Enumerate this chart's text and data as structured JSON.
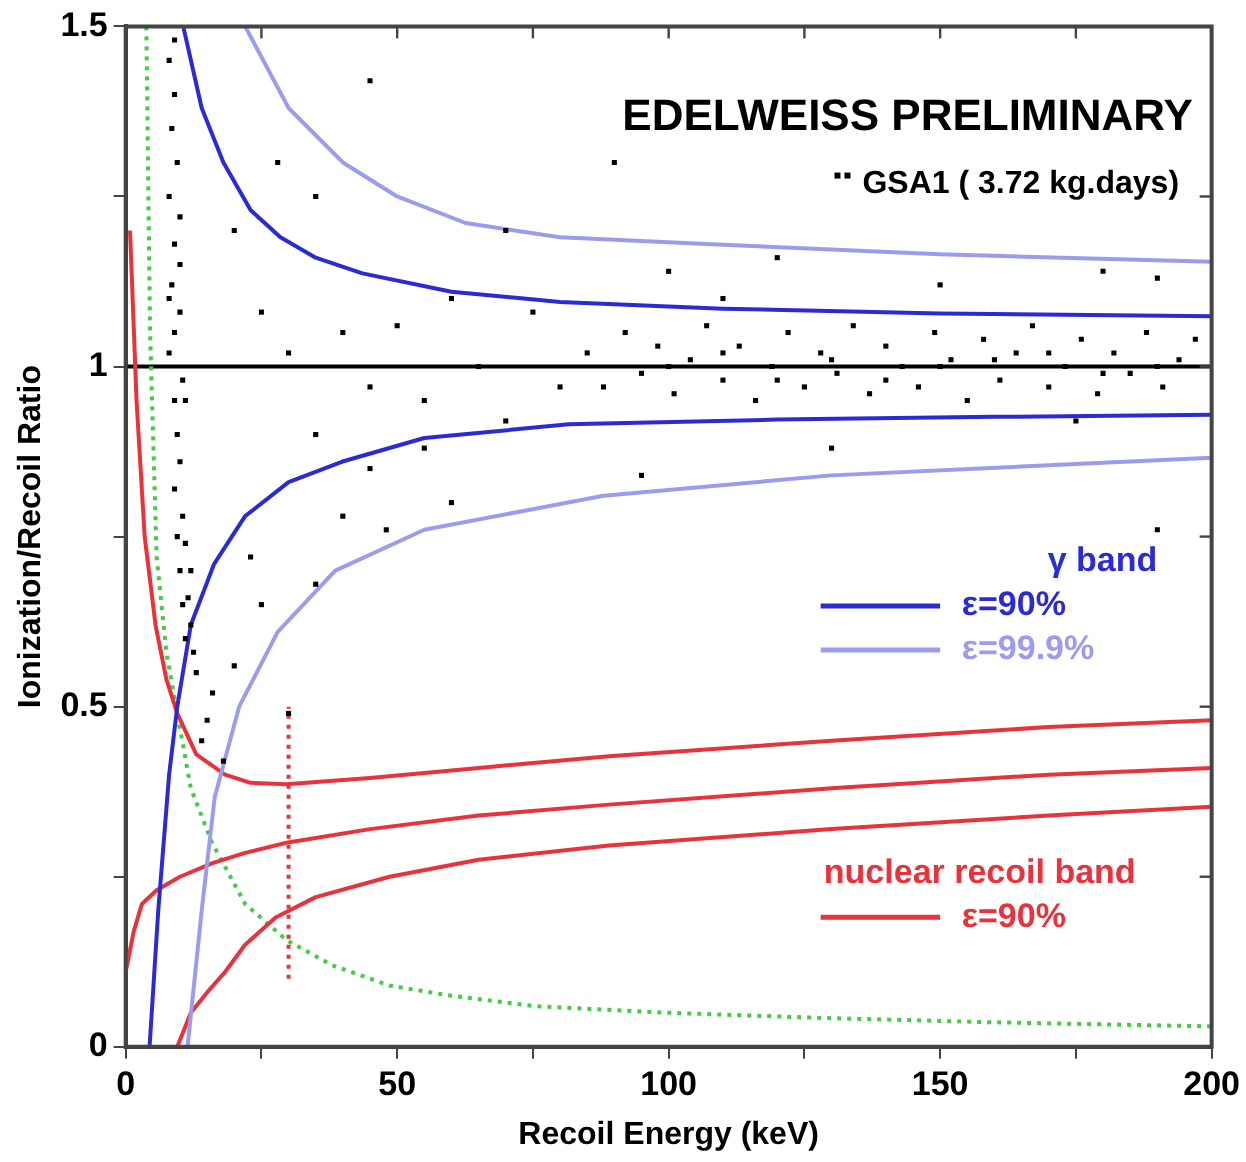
{
  "chart_data": {
    "type": "scatter",
    "title": "EDELWEISS PRELIMINARY",
    "xlabel": "Recoil Energy (keV)",
    "ylabel": "Ionization/Recoil Ratio",
    "annotations": [
      "γ band",
      "nuclear recoil band"
    ],
    "xlim": [
      0,
      200
    ],
    "ylim": [
      0,
      1.5
    ],
    "xticks": [
      0,
      {
        "value": 25,
        "label": null
      },
      50,
      {
        "value": 75,
        "label": null
      },
      100,
      {
        "value": 125,
        "label": null
      },
      150,
      {
        "value": 175,
        "label": null
      },
      200
    ],
    "yticks": [
      0,
      {
        "value": 0.25,
        "label": null
      },
      0.5,
      {
        "value": 0.75,
        "label": null
      },
      1,
      {
        "value": 1.25,
        "label": null
      },
      1.5
    ],
    "grid": false,
    "legend": "right",
    "ref_lines": [
      {
        "axis": "y",
        "value": 1,
        "color": "#000000"
      }
    ],
    "series": [
      {
        "marker": "square",
        "name": "GSA1 ( 3.72 kg.days)",
        "color": "#000000",
        "x": [
          8,
          9,
          8.5,
          9.5,
          8,
          10,
          9,
          8.5,
          10,
          9,
          8,
          10.5,
          9,
          9.5,
          10,
          9,
          10.5,
          11,
          10,
          11.5,
          12,
          11,
          12.5,
          9,
          10,
          8,
          11,
          9.5,
          12,
          10.5,
          13,
          16,
          15,
          20,
          18,
          25,
          23,
          35,
          30,
          14,
          20,
          28,
          35,
          25,
          30,
          40,
          45,
          50,
          55,
          60,
          65,
          70,
          75,
          80,
          35,
          45,
          55,
          60,
          40,
          48,
          70,
          90,
          100,
          110,
          120,
          150,
          180,
          190,
          45,
          95,
          130,
          190,
          175,
          85,
          88,
          92,
          95,
          98,
          101,
          104,
          107,
          110,
          113,
          116,
          119,
          122,
          125,
          128,
          131,
          134,
          137,
          140,
          143,
          146,
          149,
          152,
          155,
          158,
          161,
          164,
          167,
          170,
          173,
          176,
          179,
          182,
          185,
          188,
          191,
          194,
          197,
          130,
          140,
          150,
          160,
          170,
          180,
          190,
          120,
          110,
          100
        ],
        "values": [
          1.45,
          1.4,
          1.35,
          1.3,
          1.25,
          1.22,
          1.18,
          1.12,
          1.08,
          1.05,
          1.02,
          0.98,
          0.95,
          0.9,
          0.86,
          0.82,
          0.78,
          0.74,
          0.7,
          0.66,
          0.62,
          0.6,
          0.58,
          1.48,
          1.15,
          1.1,
          0.95,
          0.75,
          0.7,
          0.65,
          0.55,
          0.52,
          0.48,
          0.56,
          0.42,
          0.65,
          0.72,
          0.68,
          0.49,
          0.45,
          1.2,
          1.3,
          1.25,
          1.08,
          1.02,
          1.05,
          0.97,
          1.06,
          0.95,
          1.1,
          1.0,
          0.92,
          1.08,
          0.97,
          0.9,
          0.85,
          0.88,
          0.8,
          0.78,
          0.76,
          1.2,
          1.3,
          1.14,
          1.1,
          1.16,
          1.12,
          1.14,
          1.13,
          1.42,
          0.84,
          0.88,
          0.76,
          0.92,
          1.02,
          0.97,
          1.05,
          0.99,
          1.03,
          0.96,
          1.01,
          1.06,
          0.98,
          1.03,
          0.95,
          1.0,
          1.05,
          0.97,
          1.02,
          0.99,
          1.06,
          0.96,
          1.03,
          1.0,
          0.97,
          1.05,
          1.01,
          0.95,
          1.04,
          0.98,
          1.02,
          1.06,
          0.97,
          1.0,
          1.04,
          0.96,
          1.02,
          0.99,
          1.05,
          0.97,
          1.01,
          1.04,
          1.01,
          0.98,
          1.0,
          1.01,
          1.02,
          0.99,
          1.0,
          0.98,
          1.02,
          1.0
        ]
      },
      {
        "type": "line",
        "name": "ε=90%",
        "color": "#2b2bd6",
        "x": [
          10.6,
          14,
          18,
          23,
          28.5,
          35,
          43.6,
          60,
          80,
          110,
          150,
          200
        ],
        "values": [
          1.5,
          1.38,
          1.3,
          1.23,
          1.19,
          1.16,
          1.137,
          1.11,
          1.095,
          1.085,
          1.078,
          1.074
        ]
      },
      {
        "type": "line",
        "color": "#2b2bd6",
        "x": [
          4.4,
          6,
          8,
          9.5,
          12,
          16.3,
          22,
          30,
          39.8,
          55,
          81.6,
          120,
          160,
          200
        ],
        "values": [
          0,
          0.2,
          0.4,
          0.5,
          0.62,
          0.71,
          0.78,
          0.83,
          0.86,
          0.895,
          0.915,
          0.922,
          0.926,
          0.929
        ]
      },
      {
        "type": "line",
        "name": "ε=99.9%",
        "color": "#9c9cee",
        "x": [
          22,
          30,
          40,
          50,
          62.6,
          80,
          107,
          150,
          200
        ],
        "values": [
          1.5,
          1.38,
          1.3,
          1.25,
          1.211,
          1.19,
          1.18,
          1.165,
          1.154
        ]
      },
      {
        "type": "line",
        "color": "#9c9cee",
        "x": [
          11.4,
          14,
          16.4,
          20.9,
          28,
          38.6,
          55,
          88,
          130,
          200
        ],
        "values": [
          0,
          0.2,
          0.367,
          0.5,
          0.61,
          0.7,
          0.76,
          0.81,
          0.84,
          0.866
        ]
      },
      {
        "type": "line",
        "name": "ε=90%",
        "color": "#e8323c",
        "x": [
          0.8,
          2,
          3.5,
          5.5,
          7.5,
          9.5,
          13,
          18.3,
          23,
          29.6,
          45,
          65,
          89,
          130,
          170,
          200
        ],
        "values": [
          1.2,
          0.95,
          0.75,
          0.62,
          0.54,
          0.49,
          0.43,
          0.4,
          0.388,
          0.386,
          0.395,
          0.41,
          0.427,
          0.45,
          0.47,
          0.48
        ]
      },
      {
        "type": "line",
        "color": "#e8323c",
        "x": [
          0,
          1.5,
          3,
          5.7,
          10,
          16,
          22,
          29.6,
          45,
          65,
          89,
          130,
          170,
          200
        ],
        "values": [
          0.11,
          0.17,
          0.21,
          0.23,
          0.25,
          0.27,
          0.285,
          0.3,
          0.32,
          0.34,
          0.356,
          0.38,
          0.4,
          0.41
        ]
      },
      {
        "type": "line",
        "color": "#e8323c",
        "x": [
          9.5,
          12,
          15,
          18.3,
          22,
          27.6,
          35,
          48.6,
          65,
          89,
          130,
          170,
          200
        ],
        "values": [
          0,
          0.05,
          0.08,
          0.11,
          0.15,
          0.19,
          0.22,
          0.25,
          0.275,
          0.296,
          0.32,
          0.34,
          0.353
        ]
      },
      {
        "type": "line",
        "color": "#44cc44",
        "line_style": "dotted",
        "x": [
          3.8,
          4.5,
          5.7,
          7.5,
          9.5,
          12,
          15.9,
          22,
          29.6,
          38,
          48.6,
          60,
          75,
          100,
          130,
          160,
          200
        ],
        "values": [
          1.5,
          1.05,
          0.72,
          0.58,
          0.49,
          0.38,
          0.3,
          0.21,
          0.157,
          0.12,
          0.09,
          0.075,
          0.06,
          0.05,
          0.042,
          0.036,
          0.03
        ]
      },
      {
        "type": "line",
        "color": "#e8323c",
        "line_style": "dotted",
        "x": [
          30,
          30
        ],
        "values": [
          0.1,
          0.5
        ]
      }
    ]
  }
}
